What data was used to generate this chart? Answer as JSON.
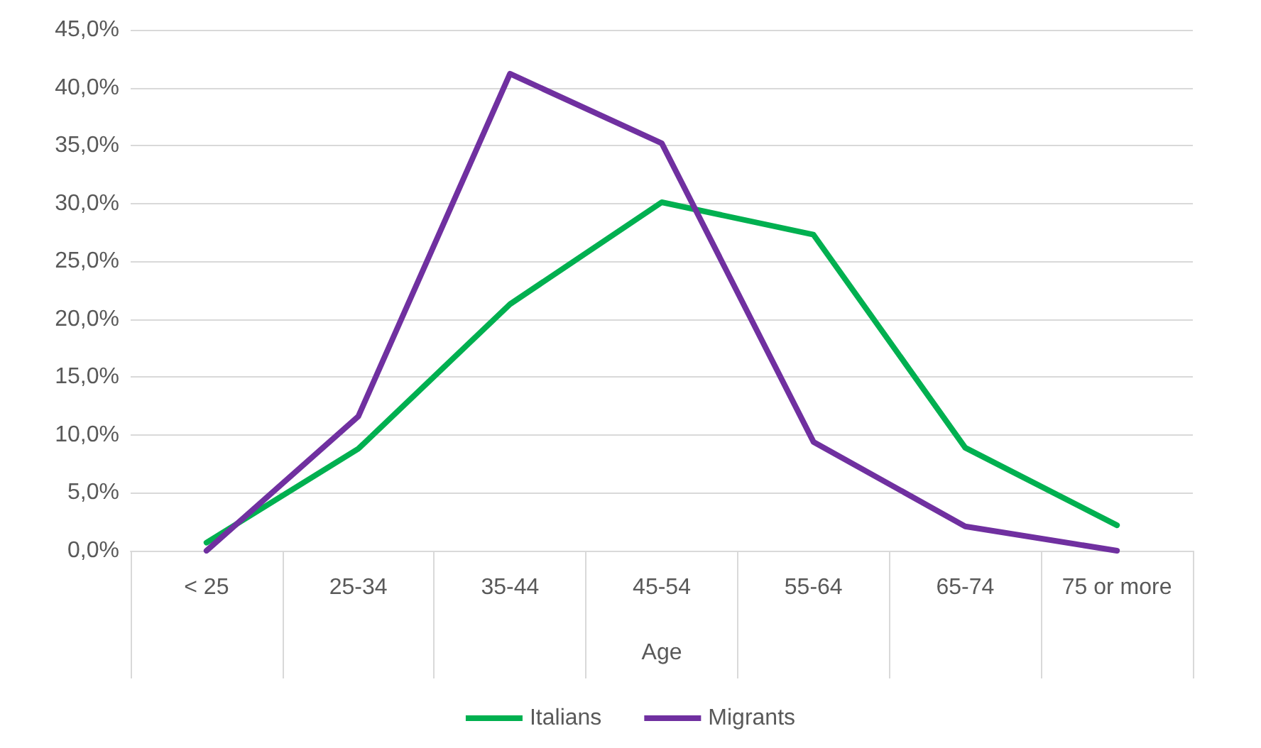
{
  "chart_data": {
    "type": "line",
    "xlabel": "Age",
    "categories": [
      "< 25",
      "25-34",
      "35-44",
      "45-54",
      "55-64",
      "65-74",
      "75 or more"
    ],
    "series": [
      {
        "name": "Italians",
        "color": "#00b050",
        "values": [
          0.7,
          8.8,
          21.3,
          30.1,
          27.3,
          8.9,
          2.2
        ]
      },
      {
        "name": "Migrants",
        "color": "#7030a0",
        "values": [
          0,
          11.6,
          41.2,
          35.2,
          9.4,
          2.1,
          0
        ]
      }
    ],
    "ylim": [
      0,
      45
    ],
    "yticks": [
      {
        "value": 0,
        "label": "0,0%"
      },
      {
        "value": 5,
        "label": "5,0%"
      },
      {
        "value": 10,
        "label": "10,0%"
      },
      {
        "value": 15,
        "label": "15,0%"
      },
      {
        "value": 20,
        "label": "20,0%"
      },
      {
        "value": 25,
        "label": "25,0%"
      },
      {
        "value": 30,
        "label": "30,0%"
      },
      {
        "value": 35,
        "label": "35,0%"
      },
      {
        "value": 40,
        "label": "40,0%"
      },
      {
        "value": 45,
        "label": "45,0%"
      }
    ],
    "grid": "y",
    "legend": "bottom",
    "marker": "none",
    "line_style": "solid"
  }
}
